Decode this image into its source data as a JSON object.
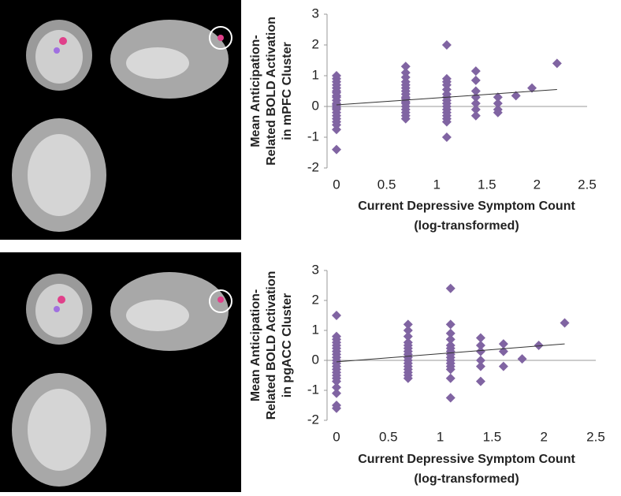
{
  "chart_data": [
    {
      "type": "scatter",
      "color": "#8064a2",
      "y_label": [
        "Mean Anticipation-",
        "Related BOLD Activation",
        "in mPFC Cluster"
      ],
      "x_label": [
        "Current Depressive Symptom  Count",
        "(log-transformed)"
      ],
      "xlim": [
        0,
        2.5
      ],
      "ylim": [
        -2,
        3
      ],
      "xticks": [
        0,
        0.5,
        1,
        1.5,
        2,
        2.5
      ],
      "yticks": [
        -2,
        -1,
        0,
        1,
        2,
        3
      ],
      "x": [
        0,
        0,
        0,
        0,
        0,
        0,
        0,
        0,
        0,
        0,
        0,
        0,
        0,
        0,
        0,
        0,
        0,
        0,
        0,
        0,
        0,
        0,
        0.69,
        0.69,
        0.69,
        0.69,
        0.69,
        0.69,
        0.69,
        0.69,
        0.69,
        0.69,
        0.69,
        0.69,
        0.69,
        0.69,
        0.69,
        0.69,
        0.69,
        1.1,
        1.1,
        1.1,
        1.1,
        1.1,
        1.1,
        1.1,
        1.1,
        1.1,
        1.1,
        1.1,
        1.1,
        1.1,
        1.1,
        1.1,
        1.1,
        1.39,
        1.39,
        1.39,
        1.39,
        1.39,
        1.39,
        1.39,
        1.61,
        1.61,
        1.61,
        1.61,
        1.79,
        1.95,
        2.2
      ],
      "values": [
        1.0,
        0.9,
        0.8,
        0.7,
        0.6,
        0.5,
        0.45,
        0.35,
        0.3,
        0.2,
        0.1,
        0.05,
        0,
        -0.05,
        -0.1,
        -0.2,
        -0.3,
        -0.4,
        -0.5,
        -0.6,
        -0.75,
        -1.4,
        1.3,
        1.1,
        0.95,
        0.8,
        0.7,
        0.6,
        0.5,
        0.4,
        0.3,
        0.25,
        0.15,
        0.1,
        0,
        -0.1,
        -0.2,
        -0.3,
        -0.4,
        2.0,
        0.9,
        0.8,
        0.7,
        0.55,
        0.4,
        0.3,
        0.2,
        0.1,
        0,
        -0.1,
        -0.2,
        -0.3,
        -0.4,
        -0.5,
        -1.0,
        1.15,
        0.85,
        0.5,
        0.3,
        0.1,
        -0.1,
        -0.3,
        0.3,
        0.1,
        -0.1,
        -0.2,
        0.35,
        0.6,
        1.4
      ],
      "trend_x": [
        0,
        2.2
      ],
      "trend_y": [
        0.05,
        0.55
      ]
    },
    {
      "type": "scatter",
      "color": "#8064a2",
      "y_label": [
        "Mean Anticipation-",
        "Related BOLD Activation",
        "in pgACC Cluster"
      ],
      "x_label": [
        "Current Depressive Symptom  Count",
        "(log-transformed)"
      ],
      "xlim": [
        0,
        2.5
      ],
      "ylim": [
        -2,
        3
      ],
      "xticks": [
        0,
        0.5,
        1,
        1.5,
        2,
        2.5
      ],
      "yticks": [
        -2,
        -1,
        0,
        1,
        2,
        3
      ],
      "x": [
        0,
        0,
        0,
        0,
        0,
        0,
        0,
        0,
        0,
        0,
        0,
        0,
        0,
        0,
        0,
        0,
        0,
        0,
        0,
        0,
        0,
        0.69,
        0.69,
        0.69,
        0.69,
        0.69,
        0.69,
        0.69,
        0.69,
        0.69,
        0.69,
        0.69,
        0.69,
        0.69,
        0.69,
        0.69,
        0.69,
        1.1,
        1.1,
        1.1,
        1.1,
        1.1,
        1.1,
        1.1,
        1.1,
        1.1,
        1.1,
        1.1,
        1.1,
        1.1,
        1.1,
        1.1,
        1.39,
        1.39,
        1.39,
        1.39,
        1.39,
        1.39,
        1.61,
        1.61,
        1.61,
        1.79,
        1.95,
        2.2
      ],
      "values": [
        1.5,
        0.8,
        0.7,
        0.6,
        0.5,
        0.4,
        0.3,
        0.2,
        0.1,
        0,
        -0.1,
        -0.2,
        -0.3,
        -0.4,
        -0.5,
        -0.6,
        -0.7,
        -0.9,
        -1.1,
        -1.5,
        -1.6,
        1.2,
        1.0,
        0.8,
        0.6,
        0.5,
        0.4,
        0.3,
        0.2,
        0.1,
        0,
        -0.1,
        -0.2,
        -0.3,
        -0.4,
        -0.5,
        -0.6,
        2.4,
        1.2,
        0.9,
        0.7,
        0.5,
        0.4,
        0.3,
        0.2,
        0.1,
        0,
        -0.1,
        -0.2,
        -0.3,
        -0.6,
        -1.25,
        0.75,
        0.5,
        0.3,
        0,
        -0.2,
        -0.7,
        0.55,
        0.3,
        -0.2,
        0.05,
        0.5,
        1.25
      ],
      "trend_x": [
        0,
        2.2
      ],
      "trend_y": [
        -0.05,
        0.55
      ]
    }
  ]
}
